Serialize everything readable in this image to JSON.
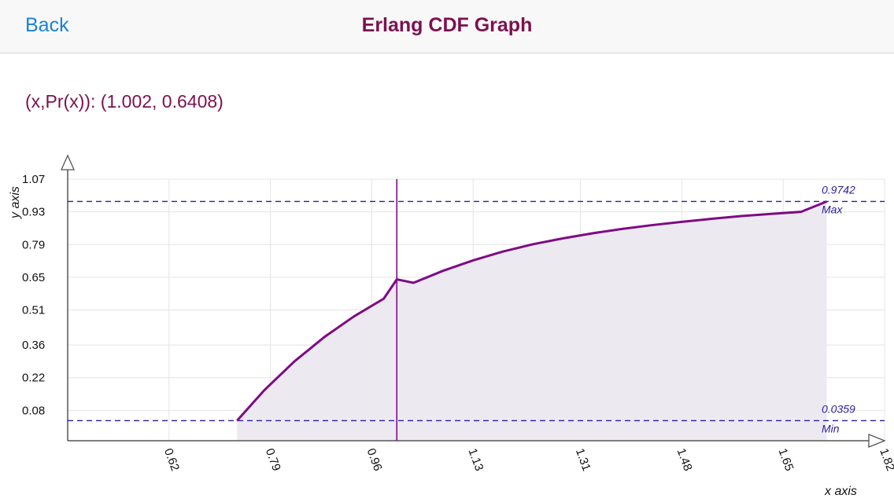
{
  "nav": {
    "back_label": "Back",
    "title": "Erlang CDF Graph"
  },
  "readout": {
    "text": "(x,Pr(x)): (1.002, 0.6408)"
  },
  "colors": {
    "accent": "#7c1150",
    "link": "#1a82d8",
    "curve": "#7d0c84",
    "reference": "#2a1f9e",
    "fill": "#ece9f1"
  },
  "chart_data": {
    "type": "area",
    "xlabel": "x axis",
    "ylabel": "y axis",
    "x_ticks": [
      "0.62",
      "0.79",
      "0.96",
      "1.13",
      "1.31",
      "1.48",
      "1.65",
      "1.82"
    ],
    "y_ticks": [
      "0.08",
      "0.22",
      "0.36",
      "0.51",
      "0.65",
      "0.79",
      "0.93",
      "1.07"
    ],
    "xlim": [
      0.45,
      1.82
    ],
    "ylim": [
      -0.05,
      1.07
    ],
    "grid": true,
    "series": [
      {
        "x": [
          0.734,
          0.78,
          0.83,
          0.88,
          0.93,
          0.98,
          1.002,
          1.03,
          1.08,
          1.13,
          1.18,
          1.23,
          1.28,
          1.33,
          1.38,
          1.43,
          1.48,
          1.53,
          1.58,
          1.63,
          1.68,
          1.723
        ],
        "y": [
          0.0359,
          0.167,
          0.289,
          0.393,
          0.482,
          0.558,
          0.6408,
          0.626,
          0.678,
          0.722,
          0.76,
          0.791,
          0.816,
          0.838,
          0.857,
          0.873,
          0.887,
          0.9,
          0.912,
          0.921,
          0.93,
          0.9742
        ]
      }
    ],
    "max": {
      "value": "0.9742",
      "label": "Max"
    },
    "min": {
      "value": "0.0359",
      "label": "Min"
    },
    "cursor_x": 1.002
  }
}
